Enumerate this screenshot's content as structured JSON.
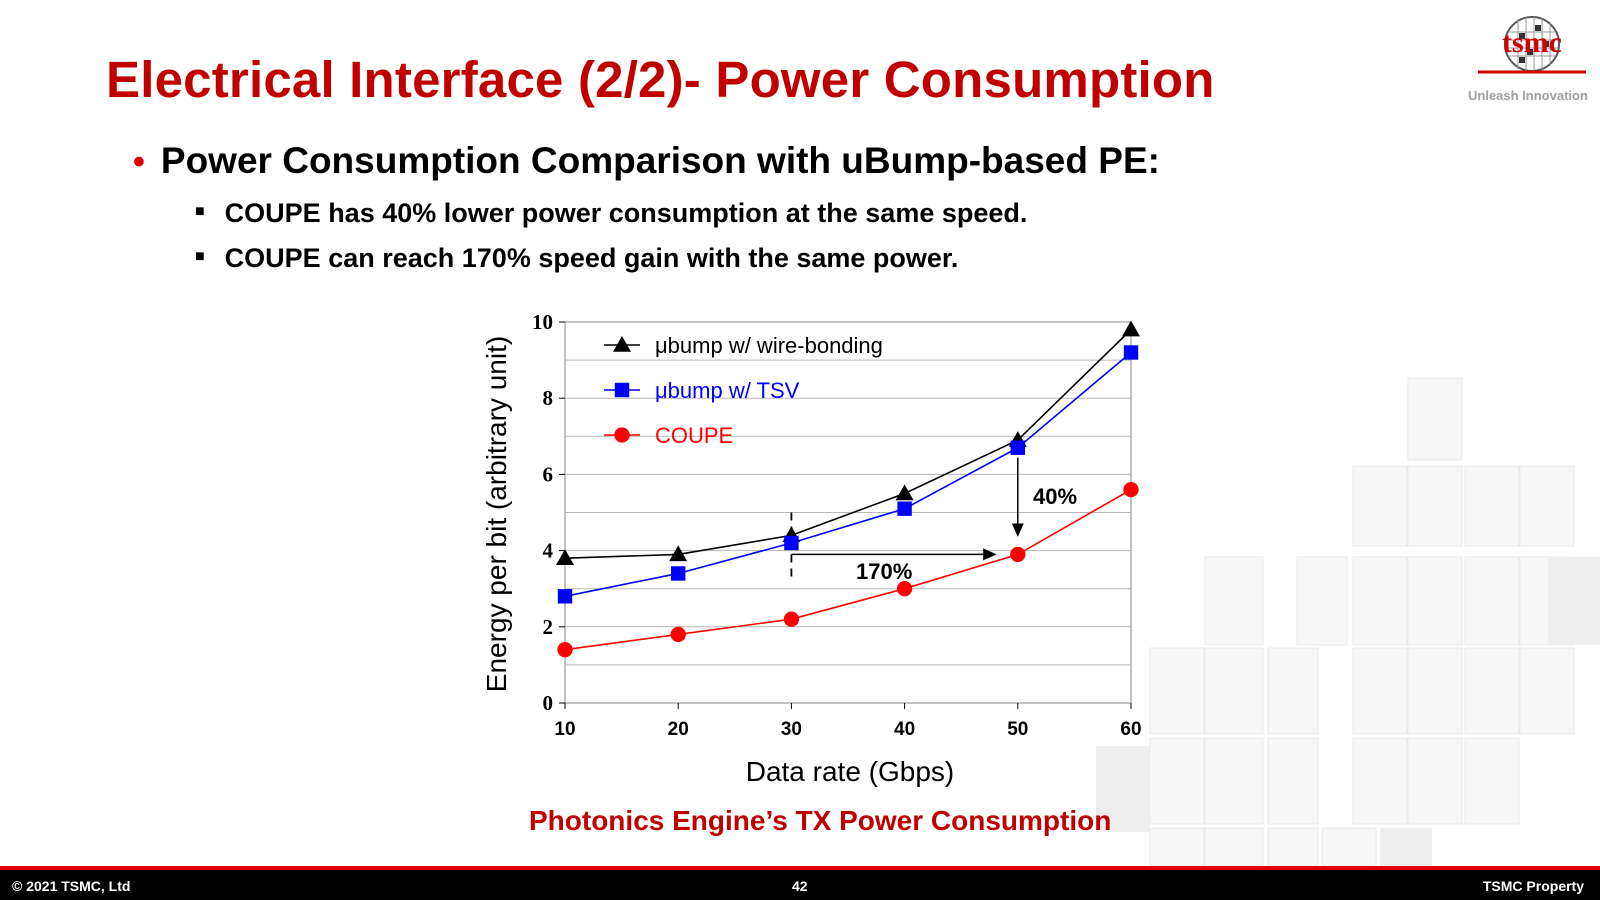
{
  "title": "Electrical Interface (2/2)- Power Consumption",
  "logo": {
    "text": "tsmc",
    "tagline": "Unleash Innovation"
  },
  "bullets": {
    "main": "Power Consumption Comparison with uBump-based PE:",
    "sub": [
      "COUPE has 40% lower power consumption at the same speed.",
      "COUPE can reach 170% speed gain with the same power."
    ]
  },
  "chart_data": {
    "type": "line",
    "title": "Photonics Engine’s TX Power Consumption",
    "xlabel": "Data rate (Gbps)",
    "ylabel": "Energy per bit (arbitrary unit)",
    "x": [
      10,
      20,
      30,
      40,
      50,
      60
    ],
    "xlim": [
      10,
      60
    ],
    "ylim": [
      0,
      10
    ],
    "xticks": [
      "10",
      "20",
      "30",
      "40",
      "50",
      "60"
    ],
    "yticks": [
      "0",
      "2",
      "4",
      "6",
      "8",
      "10"
    ],
    "grid": true,
    "legend_position": "top-left",
    "series": [
      {
        "name": "μbump w/ wire-bonding",
        "marker": "triangle",
        "color": "#000000",
        "values": [
          3.8,
          3.9,
          4.4,
          5.5,
          6.9,
          9.8
        ]
      },
      {
        "name": "μbump w/ TSV",
        "marker": "square",
        "color": "#0000ff",
        "values": [
          2.8,
          3.4,
          4.2,
          5.1,
          6.7,
          9.2
        ]
      },
      {
        "name": "COUPE",
        "marker": "circle",
        "color": "#ff0000",
        "values": [
          1.4,
          1.8,
          2.2,
          3.0,
          3.9,
          5.6
        ]
      }
    ],
    "annotations": [
      {
        "label": "40%",
        "type": "vertical-arrow",
        "x": 50,
        "y_from": 6.7,
        "y_to": 4.4
      },
      {
        "label": "170%",
        "type": "horizontal-arrow",
        "y": 3.9,
        "x_from": 30,
        "x_to": 48
      }
    ],
    "guide_line": {
      "x": 30,
      "y_from": 3.3,
      "y_to": 5.0
    }
  },
  "footer": {
    "copyright": "© 2021 TSMC, Ltd",
    "page_number": "42",
    "property": "TSMC Property"
  },
  "colors": {
    "accent": "#c00000",
    "footer_bg": "#000000",
    "footer_line": "#e00000"
  }
}
